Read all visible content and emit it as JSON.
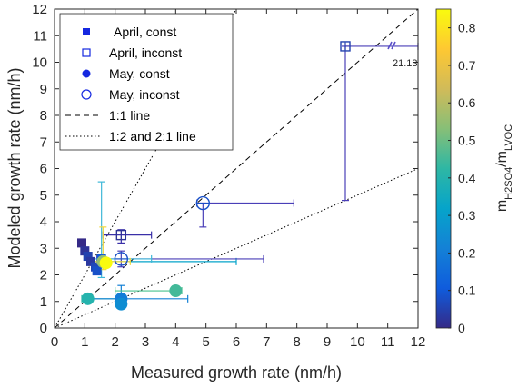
{
  "chart_data": {
    "type": "scatter",
    "xlabel": "Measured growth rate (nm/h)",
    "ylabel": "Modeled growth rate (nm/h)",
    "xlim": [
      0,
      12
    ],
    "ylim": [
      0,
      12
    ],
    "xticks": [
      "0",
      "1",
      "2",
      "3",
      "4",
      "5",
      "6",
      "7",
      "8",
      "9",
      "10",
      "11",
      "12"
    ],
    "yticks": [
      "0",
      "1",
      "2",
      "3",
      "4",
      "5",
      "6",
      "7",
      "8",
      "9",
      "10",
      "11",
      "12"
    ],
    "grid": false,
    "legend_position": "top-left",
    "legend": [
      {
        "label": "April, const",
        "marker": "filled-square"
      },
      {
        "label": "April, inconst",
        "marker": "open-square"
      },
      {
        "label": "May, const",
        "marker": "filled-circle"
      },
      {
        "label": "May, inconst",
        "marker": "open-circle"
      },
      {
        "label": "1:1 line",
        "marker": "dashed-line"
      },
      {
        "label": "1:2 and 2:1 line",
        "marker": "dotted-line"
      }
    ],
    "colorbar": {
      "label_main": "m",
      "label_sub1": "H2SO4",
      "label_mid": "/m",
      "label_sub2": "LVOC",
      "range": [
        0,
        0.85
      ],
      "ticks": [
        "0",
        "0.1",
        "0.2",
        "0.3",
        "0.4",
        "0.5",
        "0.6",
        "0.7",
        "0.8"
      ],
      "colormap": "parula"
    },
    "annotation": "21.13",
    "series": [
      {
        "name": "April, const",
        "marker": "filled-square",
        "points": [
          {
            "x": 0.9,
            "y": 3.2,
            "c": 0.0
          },
          {
            "x": 1.0,
            "y": 2.9,
            "c": 0.02
          },
          {
            "x": 1.1,
            "y": 2.7,
            "c": 0.05
          },
          {
            "x": 1.2,
            "y": 2.5,
            "c": 0.03
          },
          {
            "x": 1.35,
            "y": 2.3,
            "c": 0.06
          },
          {
            "x": 1.4,
            "y": 2.15,
            "c": 0.08
          },
          {
            "x": 1.55,
            "y": 2.6,
            "c": 0.1
          }
        ]
      },
      {
        "name": "April, inconst",
        "marker": "open-square",
        "points": [
          {
            "x": 2.2,
            "y": 3.5,
            "c": 0.02
          },
          {
            "x": 9.6,
            "y": 10.6,
            "c": 0.05
          }
        ]
      },
      {
        "name": "May, const",
        "marker": "filled-circle",
        "points": [
          {
            "x": 1.1,
            "y": 1.1,
            "c": 0.4
          },
          {
            "x": 2.2,
            "y": 1.1,
            "c": 0.2
          },
          {
            "x": 2.2,
            "y": 0.9,
            "c": 0.25
          },
          {
            "x": 1.6,
            "y": 2.5,
            "c": 0.55
          },
          {
            "x": 1.7,
            "y": 2.45,
            "c": 0.85
          },
          {
            "x": 4.0,
            "y": 1.4,
            "c": 0.45
          }
        ]
      },
      {
        "name": "May, inconst",
        "marker": "open-circle",
        "points": [
          {
            "x": 2.2,
            "y": 2.6,
            "c": 0.08
          },
          {
            "x": 4.9,
            "y": 4.7,
            "c": 0.08
          }
        ]
      }
    ],
    "reference_lines": [
      {
        "label": "1:1 line",
        "slope": 1
      },
      {
        "label": "1:2 and 2:1 line",
        "slope": 2
      },
      {
        "label": "1:2 and 2:1 line",
        "slope": 0.5
      }
    ]
  }
}
